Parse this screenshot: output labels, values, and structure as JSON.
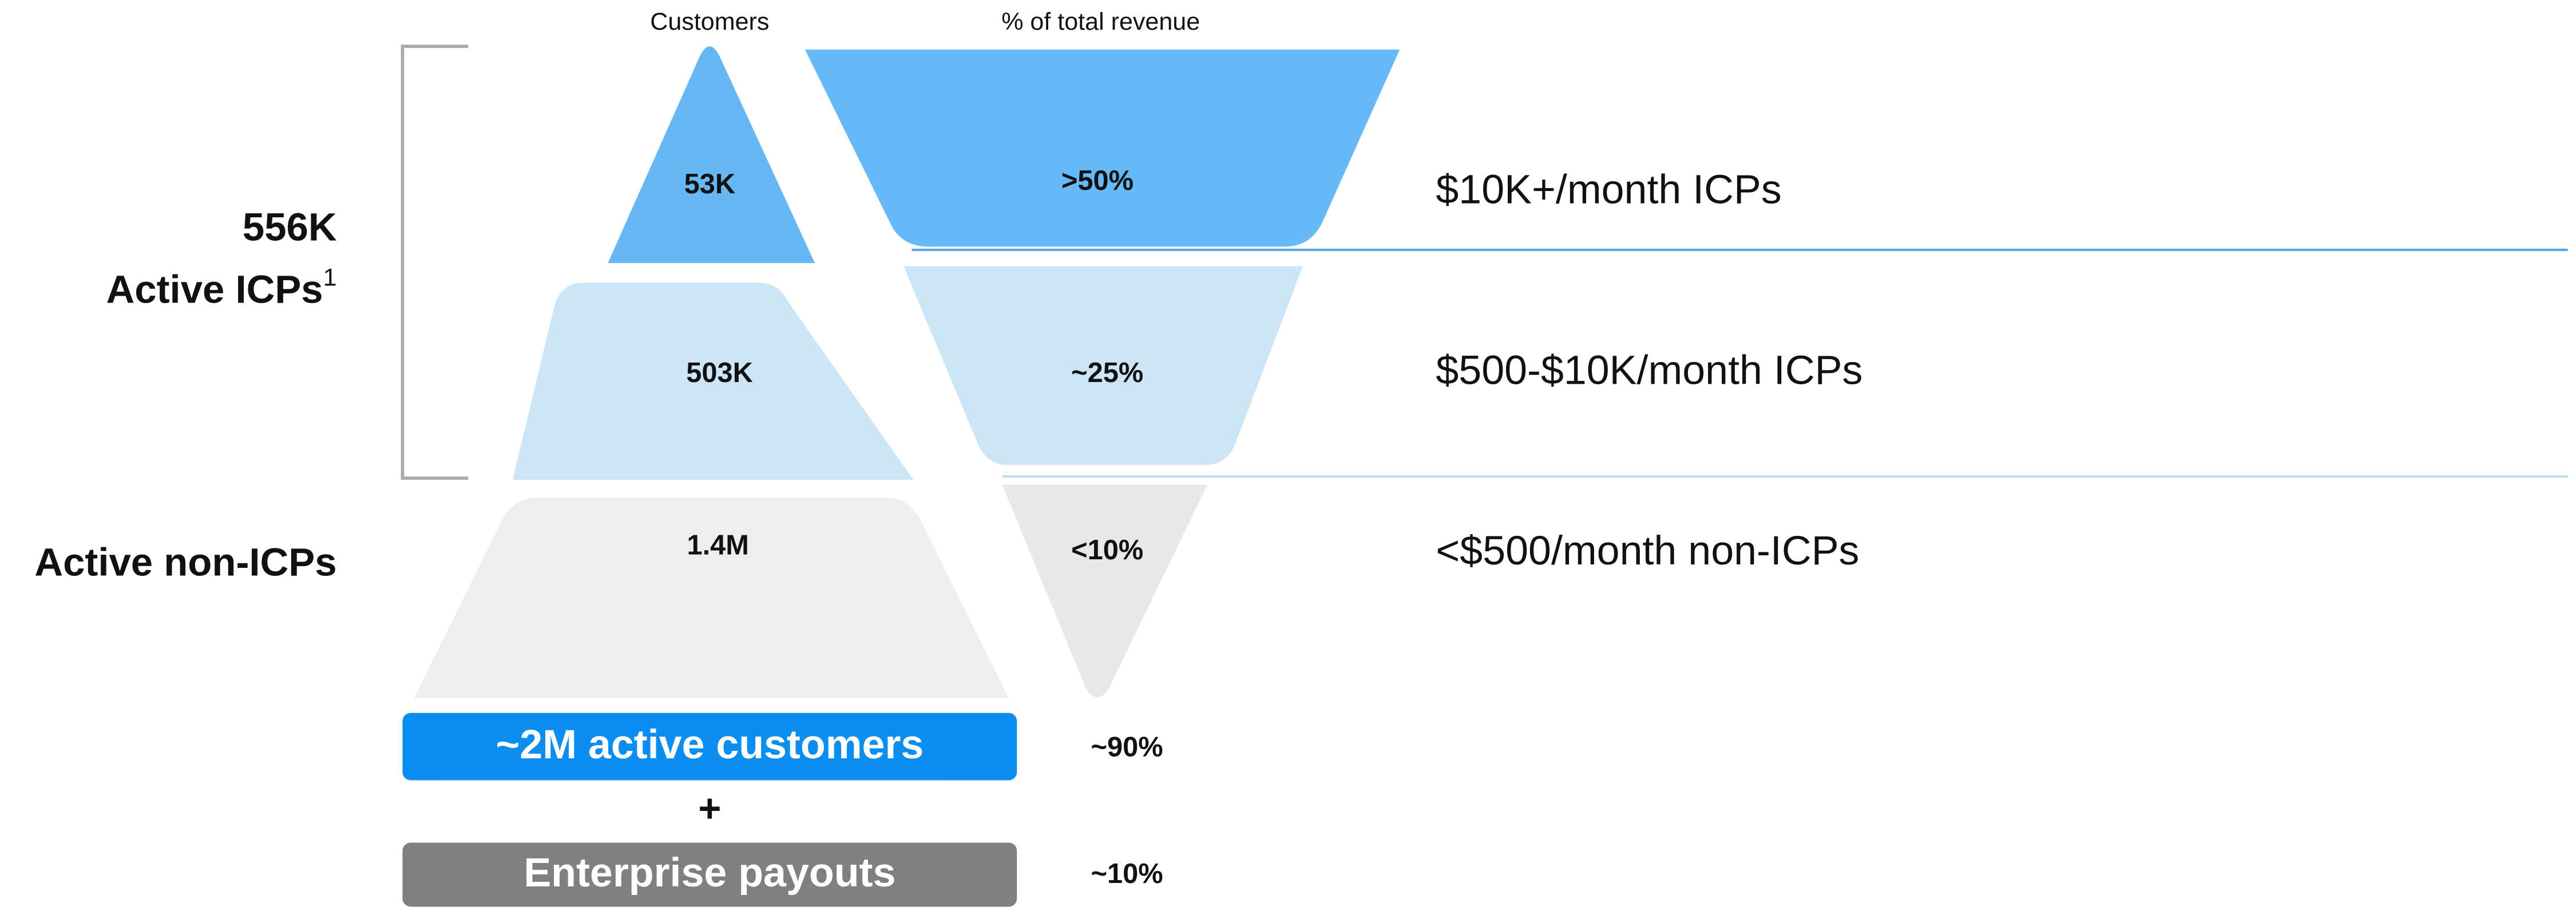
{
  "headers": {
    "customers": "Customers",
    "revenue": "% of total revenue"
  },
  "left_labels": {
    "icp_count": "556K",
    "icp_label": "Active ICPs",
    "icp_footnote": "1",
    "non_icp_label": "Active non-ICPs"
  },
  "tiers": [
    {
      "customers": "53K",
      "revenue": ">50%",
      "label": "$10K+/month ICPs"
    },
    {
      "customers": "503K",
      "revenue": "~25%",
      "label": "$500-$10K/month ICPs"
    },
    {
      "customers": "1.4M",
      "revenue": "<10%",
      "label": "<$500/month non-ICPs"
    }
  ],
  "totals": [
    {
      "label": "~2M active customers",
      "revenue": "~90%"
    },
    {
      "label": "Enterprise payouts",
      "revenue": "~10%"
    }
  ],
  "plus": "+"
}
